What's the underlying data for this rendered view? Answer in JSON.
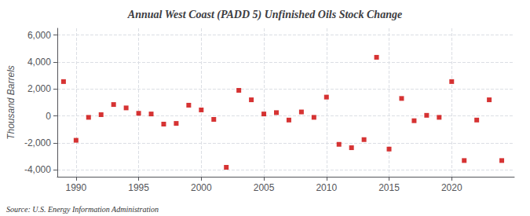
{
  "chart_data": {
    "type": "scatter",
    "title": "Annual West Coast (PADD 5) Unfinished Oils Stock Change",
    "ylabel": "Thousand Barrels",
    "annotations": [
      "Source: U.S. Energy Information Administration"
    ],
    "x": [
      1989,
      1990,
      1991,
      1992,
      1993,
      1994,
      1995,
      1996,
      1997,
      1998,
      1999,
      2000,
      2001,
      2002,
      2003,
      2004,
      2005,
      2006,
      2007,
      2008,
      2009,
      2010,
      2011,
      2012,
      2013,
      2014,
      2015,
      2016,
      2017,
      2018,
      2019,
      2020,
      2021,
      2022,
      2023,
      2024
    ],
    "values": [
      2550,
      -1800,
      -100,
      100,
      850,
      600,
      200,
      150,
      -600,
      -550,
      800,
      450,
      -250,
      -3800,
      1900,
      1200,
      150,
      250,
      -300,
      300,
      -100,
      1400,
      -2100,
      -2350,
      -1750,
      4350,
      -2450,
      1300,
      -350,
      50,
      -100,
      2550,
      -3300,
      -300,
      1200,
      -3300
    ],
    "color": "#cc0000",
    "marker": "square",
    "xlim": [
      1988.5,
      2025
    ],
    "xticks": [
      1990,
      1995,
      2000,
      2005,
      2010,
      2015,
      2020
    ],
    "ylim": [
      -4500,
      6500
    ],
    "yticks": [
      {
        "value": -4000,
        "label": "-4,000"
      },
      {
        "value": -2000,
        "label": "-2,000"
      },
      0,
      {
        "value": 2000,
        "label": "2,000"
      },
      {
        "value": 4000,
        "label": "4,000"
      },
      {
        "value": 6000,
        "label": "6,000"
      }
    ],
    "grid": true
  }
}
